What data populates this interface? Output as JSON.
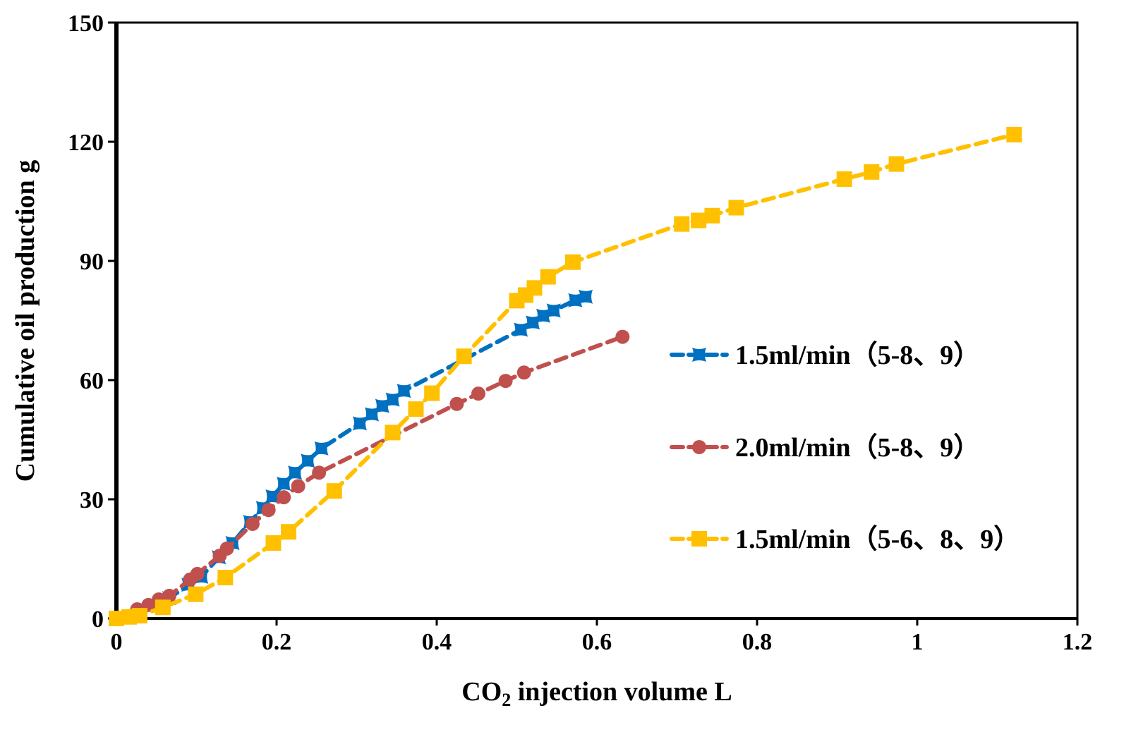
{
  "chart_data": {
    "type": "line",
    "title": "",
    "xlabel_main": "CO",
    "xlabel_sub": "2",
    "xlabel_rest": " injection volume L",
    "ylabel": "Cumulative oil production  g",
    "xlim": [
      0,
      1.2
    ],
    "ylim": [
      0,
      150
    ],
    "xticks": [
      0,
      0.2,
      0.4,
      0.6,
      0.8,
      1,
      1.2
    ],
    "xtick_labels": [
      "0",
      "0.2",
      "0.4",
      "0.6",
      "0.8",
      "1",
      "1.2"
    ],
    "yticks": [
      0,
      30,
      60,
      90,
      120,
      150
    ],
    "ytick_labels": [
      "0",
      "30",
      "60",
      "90",
      "120",
      "150"
    ],
    "grid": false,
    "legend_position": "right",
    "series": [
      {
        "name": "1.5ml/min（5-8、9）",
        "color": "#0070C0",
        "marker": "star-square",
        "x": [
          0,
          0.066,
          0.09,
          0.106,
          0.128,
          0.145,
          0.167,
          0.183,
          0.195,
          0.209,
          0.223,
          0.239,
          0.256,
          0.304,
          0.319,
          0.332,
          0.345,
          0.359,
          0.505,
          0.52,
          0.533,
          0.546,
          0.573,
          0.586
        ],
        "y": [
          0,
          5.1,
          8.5,
          10.5,
          15.4,
          19,
          24.3,
          27.8,
          30.7,
          33.9,
          36.7,
          39.7,
          42.8,
          49.1,
          51.4,
          53.5,
          55.1,
          57.3,
          72.7,
          74.5,
          76.2,
          77.5,
          80.1,
          81
        ]
      },
      {
        "name": "2.0ml/min（5-8、9）",
        "color": "#C0504D",
        "marker": "circle",
        "x": [
          0,
          0.026,
          0.04,
          0.053,
          0.066,
          0.092,
          0.101,
          0.129,
          0.138,
          0.17,
          0.19,
          0.209,
          0.227,
          0.253,
          0.425,
          0.452,
          0.486,
          0.509,
          0.632
        ],
        "y": [
          0,
          2.3,
          3.4,
          4.8,
          5.7,
          9.8,
          11.2,
          15.8,
          17.6,
          23.8,
          27.3,
          30.5,
          33.3,
          36.7,
          54,
          56.6,
          59.8,
          61.9,
          70.9
        ]
      },
      {
        "name": "1.5ml/min（5-6、8、9）",
        "color": "#FFC000",
        "marker": "square",
        "x": [
          0,
          0.016,
          0.029,
          0.058,
          0.099,
          0.136,
          0.196,
          0.215,
          0.272,
          0.345,
          0.374,
          0.394,
          0.434,
          0.5,
          0.511,
          0.522,
          0.539,
          0.57,
          0.706,
          0.727,
          0.744,
          0.774,
          0.909,
          0.943,
          0.974,
          1.121
        ],
        "y": [
          0,
          0.4,
          0.7,
          2.8,
          6.1,
          10.3,
          19,
          21.8,
          32.1,
          46.8,
          52.7,
          56.7,
          66,
          80,
          81.4,
          83.2,
          86,
          89.7,
          99.3,
          100.2,
          101.4,
          103.4,
          110.6,
          112.4,
          114.4,
          121.8
        ]
      }
    ]
  }
}
